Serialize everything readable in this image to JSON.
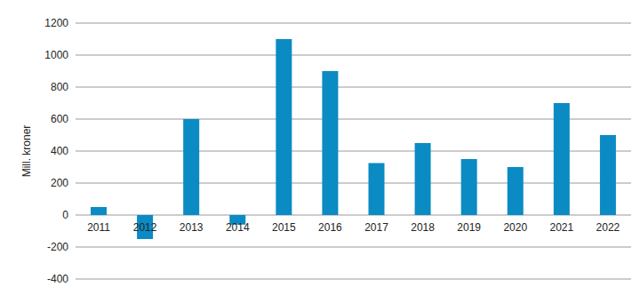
{
  "chart_data": {
    "type": "bar",
    "y_label": "Mill. kroner",
    "categories": [
      "2011",
      "2012",
      "2013",
      "2014",
      "2015",
      "2016",
      "2017",
      "2018",
      "2019",
      "2020",
      "2021",
      "2022"
    ],
    "values": [
      50,
      -150,
      600,
      -60,
      1100,
      900,
      325,
      450,
      350,
      300,
      700,
      500
    ],
    "color": "#0a8bc4",
    "ylim": [
      -400,
      1200
    ],
    "yticks": [
      -400,
      -200,
      0,
      200,
      400,
      600,
      800,
      1000,
      1200
    ],
    "grid": true
  }
}
